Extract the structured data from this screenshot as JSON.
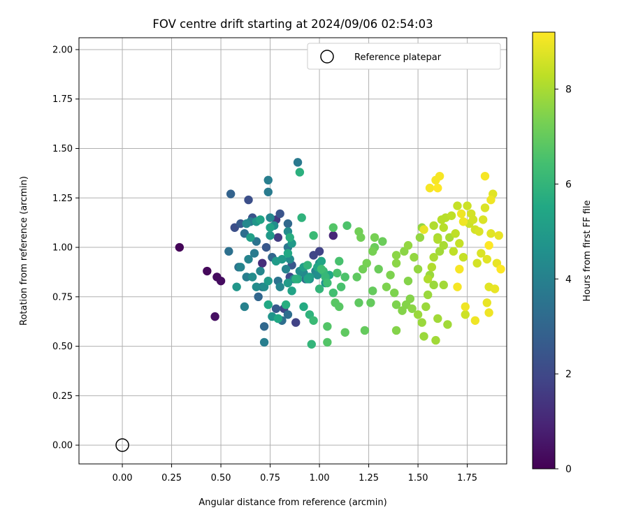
{
  "chart_data": {
    "type": "scatter",
    "title": "FOV centre drift starting at 2024/09/06 02:54:03",
    "xlabel": "Angular distance from reference (arcmin)",
    "ylabel": "Rotation from reference (arcmin)",
    "xlim": [
      -0.22,
      1.95
    ],
    "ylim": [
      -0.095,
      2.06
    ],
    "xticks": [
      "0.00",
      "0.25",
      "0.50",
      "0.75",
      "1.00",
      "1.25",
      "1.50",
      "1.75"
    ],
    "yticks": [
      "0.00",
      "0.25",
      "0.50",
      "0.75",
      "1.00",
      "1.25",
      "1.50",
      "1.75",
      "2.00"
    ],
    "grid": true,
    "legend": {
      "position": "top-right",
      "entries": [
        "Reference platepar"
      ]
    },
    "reference_point": {
      "name": "Reference platepar",
      "x": 0.0,
      "y": 0.0
    },
    "colorbar": {
      "label": "Hours from first FF file",
      "min": 0,
      "max": 9.2,
      "ticks": [
        "0",
        "2",
        "4",
        "6",
        "8"
      ],
      "colormap": "viridis"
    },
    "points": [
      [
        0.29,
        1.0,
        0.1
      ],
      [
        0.43,
        0.88,
        0.2
      ],
      [
        0.48,
        0.85,
        0.3
      ],
      [
        0.5,
        0.83,
        0.3
      ],
      [
        0.47,
        0.65,
        0.4
      ],
      [
        1.07,
        1.06,
        1.0
      ],
      [
        0.71,
        0.92,
        1.2
      ],
      [
        0.78,
        1.14,
        1.5
      ],
      [
        0.79,
        1.05,
        1.6
      ],
      [
        0.88,
        0.62,
        1.8
      ],
      [
        0.82,
        0.69,
        1.9
      ],
      [
        0.97,
        0.96,
        1.9
      ],
      [
        1.0,
        0.98,
        1.8
      ],
      [
        0.85,
        0.85,
        2.0
      ],
      [
        0.57,
        1.1,
        2.2
      ],
      [
        0.64,
        1.24,
        2.2
      ],
      [
        0.66,
        1.15,
        2.4
      ],
      [
        0.6,
        1.12,
        2.6
      ],
      [
        0.78,
        0.69,
        2.6
      ],
      [
        0.73,
        1.0,
        2.5
      ],
      [
        0.8,
        1.17,
        2.4
      ],
      [
        0.86,
        0.91,
        2.5
      ],
      [
        0.55,
        1.27,
        2.9
      ],
      [
        0.69,
        0.75,
        3.0
      ],
      [
        0.72,
        0.6,
        3.1
      ],
      [
        0.76,
        0.95,
        3.0
      ],
      [
        0.84,
        1.12,
        3.1
      ],
      [
        0.93,
        0.84,
        3.2
      ],
      [
        0.81,
        0.63,
        3.3
      ],
      [
        0.84,
        0.66,
        3.3
      ],
      [
        0.54,
        0.98,
        3.4
      ],
      [
        0.59,
        0.9,
        3.5
      ],
      [
        0.62,
        1.07,
        3.3
      ],
      [
        0.68,
        1.03,
        3.5
      ],
      [
        0.71,
        0.8,
        3.5
      ],
      [
        0.79,
        0.83,
        3.5
      ],
      [
        0.84,
        1.0,
        3.6
      ],
      [
        0.89,
        1.43,
        3.7
      ],
      [
        0.74,
        1.28,
        3.8
      ],
      [
        0.74,
        1.34,
        3.9
      ],
      [
        0.72,
        0.52,
        3.9
      ],
      [
        0.63,
        0.85,
        3.9
      ],
      [
        0.67,
        0.97,
        3.8
      ],
      [
        0.65,
        1.13,
        3.8
      ],
      [
        0.62,
        0.7,
        4.0
      ],
      [
        0.87,
        0.84,
        3.9
      ],
      [
        0.6,
        0.9,
        4.1
      ],
      [
        0.64,
        0.94,
        4.1
      ],
      [
        0.7,
        0.88,
        4.2
      ],
      [
        0.75,
        1.15,
        4.2
      ],
      [
        0.8,
        0.8,
        4.2
      ],
      [
        0.83,
        0.89,
        4.1
      ],
      [
        0.92,
        0.87,
        4.3
      ],
      [
        0.98,
        0.88,
        4.2
      ],
      [
        0.63,
        1.12,
        4.3
      ],
      [
        0.66,
        0.85,
        4.4
      ],
      [
        0.68,
        0.8,
        4.4
      ],
      [
        0.72,
        0.8,
        4.4
      ],
      [
        0.77,
        1.11,
        4.5
      ],
      [
        0.84,
        1.08,
        4.4
      ],
      [
        0.85,
        0.94,
        4.4
      ],
      [
        0.9,
        0.88,
        4.5
      ],
      [
        0.95,
        0.84,
        4.5
      ],
      [
        0.99,
        0.86,
        4.5
      ],
      [
        1.03,
        0.82,
        4.6
      ],
      [
        1.0,
        0.92,
        4.5
      ],
      [
        0.76,
        0.65,
        4.7
      ],
      [
        0.79,
        0.64,
        4.6
      ],
      [
        0.58,
        0.8,
        4.8
      ],
      [
        0.68,
        1.13,
        4.8
      ],
      [
        0.75,
        1.06,
        4.9
      ],
      [
        0.81,
        0.94,
        4.9
      ],
      [
        0.86,
        1.02,
        4.9
      ],
      [
        0.74,
        0.83,
        5.0
      ],
      [
        0.78,
        0.93,
        5.0
      ],
      [
        0.84,
        0.82,
        5.0
      ],
      [
        0.92,
        0.9,
        5.1
      ],
      [
        0.95,
        0.85,
        5.1
      ],
      [
        0.65,
        1.05,
        5.2
      ],
      [
        0.7,
        1.14,
        5.3
      ],
      [
        0.75,
        1.1,
        5.3
      ],
      [
        0.86,
        0.78,
        5.3
      ],
      [
        0.94,
        0.84,
        5.3
      ],
      [
        0.99,
        0.9,
        5.4
      ],
      [
        1.01,
        0.93,
        5.4
      ],
      [
        1.05,
        0.86,
        5.5
      ],
      [
        0.74,
        0.71,
        5.5
      ],
      [
        0.79,
        0.64,
        5.5
      ],
      [
        0.84,
        0.97,
        5.5
      ],
      [
        0.89,
        0.84,
        5.6
      ],
      [
        0.92,
        0.7,
        5.6
      ],
      [
        0.83,
        0.71,
        5.7
      ],
      [
        0.85,
        1.05,
        5.7
      ],
      [
        0.88,
        0.84,
        5.8
      ],
      [
        0.9,
        1.38,
        5.8
      ],
      [
        0.91,
        1.15,
        5.9
      ],
      [
        0.95,
        0.66,
        5.9
      ],
      [
        0.96,
        0.51,
        6.0
      ],
      [
        0.94,
        0.91,
        6.0
      ],
      [
        1.0,
        0.79,
        6.0
      ],
      [
        1.02,
        0.88,
        6.1
      ],
      [
        1.03,
        0.85,
        6.1
      ],
      [
        0.97,
        1.06,
        6.2
      ],
      [
        0.97,
        0.63,
        6.2
      ],
      [
        1.01,
        0.89,
        6.3
      ],
      [
        1.04,
        0.82,
        6.3
      ],
      [
        1.07,
        0.77,
        6.4
      ],
      [
        1.09,
        0.87,
        6.5
      ],
      [
        1.1,
        0.93,
        6.5
      ],
      [
        1.11,
        0.8,
        6.5
      ],
      [
        1.13,
        0.85,
        6.6
      ],
      [
        1.14,
        1.11,
        6.6
      ],
      [
        1.07,
        1.1,
        6.7
      ],
      [
        1.04,
        0.52,
        6.7
      ],
      [
        1.04,
        0.6,
        6.7
      ],
      [
        1.08,
        0.72,
        6.8
      ],
      [
        1.1,
        0.7,
        6.8
      ],
      [
        1.13,
        0.57,
        6.9
      ],
      [
        1.19,
        0.85,
        6.9
      ],
      [
        1.2,
        0.72,
        6.9
      ],
      [
        1.23,
        0.58,
        7.0
      ],
      [
        1.26,
        0.72,
        7.0
      ],
      [
        1.27,
        0.78,
        7.0
      ],
      [
        1.28,
        1.0,
        7.1
      ],
      [
        1.3,
        0.89,
        7.1
      ],
      [
        1.32,
        1.03,
        7.1
      ],
      [
        1.2,
        1.08,
        7.2
      ],
      [
        1.21,
        1.05,
        7.2
      ],
      [
        1.22,
        0.89,
        7.2
      ],
      [
        1.24,
        0.92,
        7.3
      ],
      [
        1.27,
        0.98,
        7.3
      ],
      [
        1.28,
        1.05,
        7.3
      ],
      [
        1.34,
        0.8,
        7.4
      ],
      [
        1.36,
        0.86,
        7.4
      ],
      [
        1.38,
        0.77,
        7.4
      ],
      [
        1.39,
        0.71,
        7.4
      ],
      [
        1.39,
        0.58,
        7.5
      ],
      [
        1.42,
        0.68,
        7.5
      ],
      [
        1.44,
        0.71,
        7.5
      ],
      [
        1.45,
        0.83,
        7.5
      ],
      [
        1.46,
        0.74,
        7.5
      ],
      [
        1.47,
        0.69,
        7.6
      ],
      [
        1.39,
        0.92,
        7.6
      ],
      [
        1.39,
        0.96,
        7.6
      ],
      [
        1.43,
        0.98,
        7.6
      ],
      [
        1.45,
        1.01,
        7.7
      ],
      [
        1.48,
        0.95,
        7.7
      ],
      [
        1.5,
        0.89,
        7.7
      ],
      [
        1.51,
        1.05,
        7.7
      ],
      [
        1.52,
        1.1,
        7.7
      ],
      [
        1.5,
        0.66,
        7.8
      ],
      [
        1.52,
        0.62,
        7.8
      ],
      [
        1.53,
        0.55,
        7.8
      ],
      [
        1.54,
        0.7,
        7.8
      ],
      [
        1.55,
        0.76,
        7.8
      ],
      [
        1.56,
        0.86,
        7.8
      ],
      [
        1.58,
        0.81,
        7.8
      ],
      [
        1.59,
        0.53,
        7.9
      ],
      [
        1.6,
        0.64,
        7.9
      ],
      [
        1.61,
        0.98,
        7.9
      ],
      [
        1.63,
        0.81,
        7.9
      ],
      [
        1.65,
        0.61,
        7.9
      ],
      [
        1.66,
        1.05,
        8.0
      ],
      [
        1.63,
        1.01,
        8.0
      ],
      [
        1.58,
        0.95,
        8.0
      ],
      [
        1.6,
        1.05,
        8.0
      ],
      [
        1.55,
        0.84,
        8.1
      ],
      [
        1.57,
        0.9,
        8.1
      ],
      [
        1.58,
        1.11,
        8.1
      ],
      [
        1.6,
        1.04,
        8.1
      ],
      [
        1.62,
        1.14,
        8.2
      ],
      [
        1.63,
        1.1,
        8.2
      ],
      [
        1.64,
        1.15,
        8.2
      ],
      [
        1.67,
        1.16,
        8.3
      ],
      [
        1.68,
        0.98,
        8.3
      ],
      [
        1.69,
        1.07,
        8.3
      ],
      [
        1.7,
        1.21,
        8.4
      ],
      [
        1.71,
        1.02,
        8.4
      ],
      [
        1.73,
        0.95,
        8.4
      ],
      [
        1.74,
        0.66,
        8.5
      ],
      [
        1.75,
        1.21,
        8.5
      ],
      [
        1.76,
        1.12,
        8.5
      ],
      [
        1.77,
        1.17,
        8.6
      ],
      [
        1.78,
        1.14,
        8.6
      ],
      [
        1.79,
        1.09,
        8.6
      ],
      [
        1.8,
        0.92,
        8.6
      ],
      [
        1.81,
        1.08,
        8.7
      ],
      [
        1.82,
        0.97,
        8.7
      ],
      [
        1.83,
        1.14,
        8.7
      ],
      [
        1.84,
        1.2,
        8.7
      ],
      [
        1.85,
        0.94,
        8.8
      ],
      [
        1.86,
        0.8,
        8.8
      ],
      [
        1.87,
        1.07,
        8.8
      ],
      [
        1.88,
        1.27,
        8.8
      ],
      [
        1.89,
        0.79,
        8.9
      ],
      [
        1.9,
        0.92,
        8.9
      ],
      [
        1.91,
        1.06,
        8.9
      ],
      [
        1.85,
        0.72,
        8.9
      ],
      [
        1.86,
        0.67,
        9.0
      ],
      [
        1.87,
        1.24,
        9.0
      ],
      [
        1.72,
        1.17,
        9.0
      ],
      [
        1.73,
        1.13,
        9.0
      ],
      [
        1.74,
        0.7,
        9.0
      ],
      [
        1.79,
        0.63,
        9.0
      ],
      [
        1.84,
        1.36,
        9.1
      ],
      [
        1.7,
        0.8,
        9.1
      ],
      [
        1.59,
        1.34,
        9.1
      ],
      [
        1.61,
        1.36,
        9.1
      ],
      [
        1.56,
        1.3,
        9.1
      ],
      [
        1.6,
        1.3,
        9.2
      ],
      [
        1.92,
        0.89,
        9.2
      ],
      [
        1.86,
        1.01,
        9.2
      ],
      [
        1.71,
        0.89,
        9.1
      ],
      [
        1.53,
        1.09,
        8.9
      ]
    ]
  }
}
